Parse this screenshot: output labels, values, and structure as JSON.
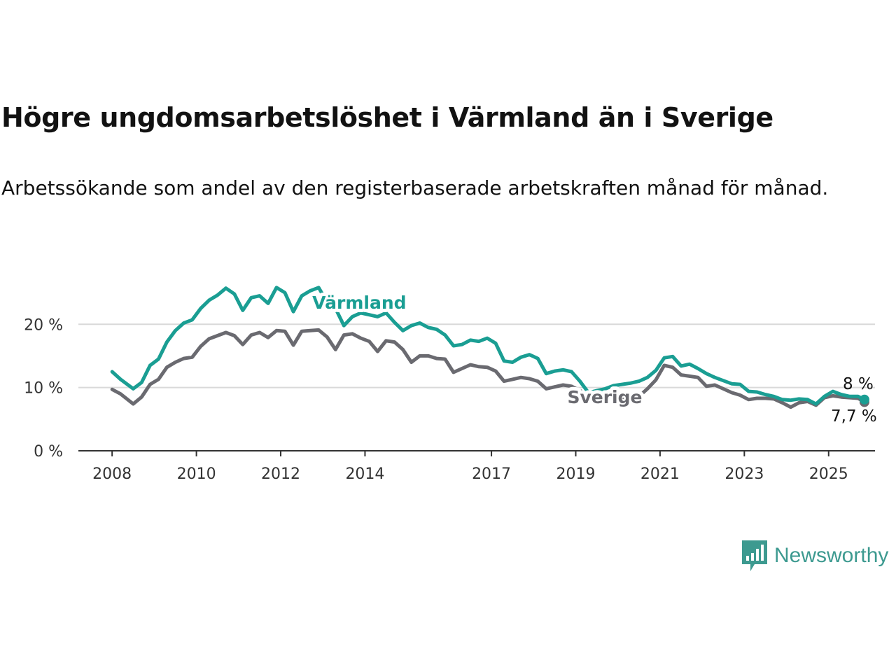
{
  "title": "Högre ungdomsarbetslöshet i Värmland än i Sverige",
  "subtitle": "Arbetssökande som andel av den registerbaserade arbetskraften månad för månad.",
  "brand": "Newsworthy",
  "colors": {
    "varmland": "#1a9e93",
    "sverige": "#6a6a70",
    "grid": "#d9d9d9",
    "axis": "#333333"
  },
  "chart_data": {
    "type": "line",
    "x_ticks": [
      "2008",
      "2010",
      "2012",
      "2014",
      "2017",
      "2019",
      "2021",
      "2023",
      "2025"
    ],
    "x_tick_values": [
      2008,
      2010,
      2012,
      2014,
      2017,
      2019,
      2021,
      2023,
      2025
    ],
    "y_ticks": [
      "0 %",
      "10 %",
      "20 %"
    ],
    "y_tick_values": [
      0,
      10,
      20
    ],
    "ylim": [
      0,
      27
    ],
    "xlim": [
      2007.2,
      2026.1
    ],
    "grid": true,
    "series": [
      {
        "name": "Värmland",
        "end_label": "8 %",
        "data": [
          [
            2008.0,
            12.5
          ],
          [
            2008.2,
            11.3
          ],
          [
            2008.5,
            9.8
          ],
          [
            2008.7,
            10.8
          ],
          [
            2008.9,
            13.5
          ],
          [
            2009.1,
            14.5
          ],
          [
            2009.3,
            17.2
          ],
          [
            2009.5,
            19.0
          ],
          [
            2009.7,
            20.2
          ],
          [
            2009.9,
            20.7
          ],
          [
            2010.1,
            22.5
          ],
          [
            2010.3,
            23.8
          ],
          [
            2010.5,
            24.6
          ],
          [
            2010.7,
            25.7
          ],
          [
            2010.9,
            24.8
          ],
          [
            2011.1,
            22.2
          ],
          [
            2011.3,
            24.2
          ],
          [
            2011.5,
            24.5
          ],
          [
            2011.7,
            23.3
          ],
          [
            2011.9,
            25.8
          ],
          [
            2012.1,
            25.0
          ],
          [
            2012.3,
            22.0
          ],
          [
            2012.5,
            24.5
          ],
          [
            2012.7,
            25.3
          ],
          [
            2012.9,
            25.8
          ],
          [
            2013.1,
            23.5
          ],
          [
            2013.3,
            22.5
          ],
          [
            2013.5,
            19.8
          ],
          [
            2013.7,
            21.2
          ],
          [
            2013.9,
            21.8
          ],
          [
            2014.1,
            21.5
          ],
          [
            2014.3,
            21.2
          ],
          [
            2014.5,
            21.8
          ],
          [
            2014.7,
            20.3
          ],
          [
            2014.9,
            19.0
          ],
          [
            2015.1,
            19.8
          ],
          [
            2015.3,
            20.2
          ],
          [
            2015.5,
            19.5
          ],
          [
            2015.7,
            19.2
          ],
          [
            2015.9,
            18.3
          ],
          [
            2016.1,
            16.6
          ],
          [
            2016.3,
            16.8
          ],
          [
            2016.5,
            17.5
          ],
          [
            2016.7,
            17.3
          ],
          [
            2016.9,
            17.8
          ],
          [
            2017.1,
            17.0
          ],
          [
            2017.3,
            14.2
          ],
          [
            2017.5,
            14.0
          ],
          [
            2017.7,
            14.8
          ],
          [
            2017.9,
            15.2
          ],
          [
            2018.1,
            14.6
          ],
          [
            2018.3,
            12.2
          ],
          [
            2018.5,
            12.6
          ],
          [
            2018.7,
            12.8
          ],
          [
            2018.9,
            12.5
          ],
          [
            2019.1,
            11.0
          ],
          [
            2019.3,
            9.2
          ],
          [
            2019.5,
            9.5
          ],
          [
            2019.7,
            9.8
          ],
          [
            2019.9,
            10.3
          ],
          [
            2020.1,
            10.5
          ],
          [
            2020.3,
            10.7
          ],
          [
            2020.5,
            11.0
          ],
          [
            2020.7,
            11.6
          ],
          [
            2020.9,
            12.7
          ],
          [
            2021.1,
            14.7
          ],
          [
            2021.3,
            14.9
          ],
          [
            2021.5,
            13.4
          ],
          [
            2021.7,
            13.7
          ],
          [
            2021.9,
            13.0
          ],
          [
            2022.1,
            12.2
          ],
          [
            2022.3,
            11.6
          ],
          [
            2022.5,
            11.1
          ],
          [
            2022.7,
            10.6
          ],
          [
            2022.9,
            10.5
          ],
          [
            2023.1,
            9.4
          ],
          [
            2023.3,
            9.3
          ],
          [
            2023.5,
            8.9
          ],
          [
            2023.7,
            8.6
          ],
          [
            2023.9,
            8.1
          ],
          [
            2024.1,
            8.0
          ],
          [
            2024.3,
            8.2
          ],
          [
            2024.5,
            8.1
          ],
          [
            2024.7,
            7.4
          ],
          [
            2024.9,
            8.6
          ],
          [
            2025.1,
            9.4
          ],
          [
            2025.3,
            8.9
          ],
          [
            2025.5,
            8.6
          ],
          [
            2025.7,
            8.6
          ],
          [
            2025.85,
            8.1
          ]
        ]
      },
      {
        "name": "Sverige",
        "end_label": "7,7 %",
        "data": [
          [
            2008.0,
            9.7
          ],
          [
            2008.2,
            9.0
          ],
          [
            2008.5,
            7.4
          ],
          [
            2008.7,
            8.5
          ],
          [
            2008.9,
            10.5
          ],
          [
            2009.1,
            11.3
          ],
          [
            2009.3,
            13.2
          ],
          [
            2009.5,
            14.0
          ],
          [
            2009.7,
            14.6
          ],
          [
            2009.9,
            14.8
          ],
          [
            2010.1,
            16.5
          ],
          [
            2010.3,
            17.7
          ],
          [
            2010.5,
            18.2
          ],
          [
            2010.7,
            18.7
          ],
          [
            2010.9,
            18.2
          ],
          [
            2011.1,
            16.8
          ],
          [
            2011.3,
            18.3
          ],
          [
            2011.5,
            18.7
          ],
          [
            2011.7,
            17.9
          ],
          [
            2011.9,
            19.0
          ],
          [
            2012.1,
            18.9
          ],
          [
            2012.3,
            16.7
          ],
          [
            2012.5,
            18.9
          ],
          [
            2012.7,
            19.0
          ],
          [
            2012.9,
            19.1
          ],
          [
            2013.1,
            18.0
          ],
          [
            2013.3,
            16.0
          ],
          [
            2013.5,
            18.3
          ],
          [
            2013.7,
            18.5
          ],
          [
            2013.9,
            17.8
          ],
          [
            2014.1,
            17.3
          ],
          [
            2014.3,
            15.7
          ],
          [
            2014.5,
            17.4
          ],
          [
            2014.7,
            17.2
          ],
          [
            2014.9,
            16.0
          ],
          [
            2015.1,
            14.0
          ],
          [
            2015.3,
            15.0
          ],
          [
            2015.5,
            15.0
          ],
          [
            2015.7,
            14.6
          ],
          [
            2015.9,
            14.5
          ],
          [
            2016.1,
            12.4
          ],
          [
            2016.3,
            13.0
          ],
          [
            2016.5,
            13.6
          ],
          [
            2016.7,
            13.3
          ],
          [
            2016.9,
            13.2
          ],
          [
            2017.1,
            12.6
          ],
          [
            2017.3,
            11.0
          ],
          [
            2017.5,
            11.3
          ],
          [
            2017.7,
            11.6
          ],
          [
            2017.9,
            11.4
          ],
          [
            2018.1,
            11.0
          ],
          [
            2018.3,
            9.8
          ],
          [
            2018.5,
            10.1
          ],
          [
            2018.7,
            10.4
          ],
          [
            2018.9,
            10.2
          ],
          [
            2019.1,
            9.5
          ],
          [
            2019.3,
            8.6
          ],
          [
            2019.5,
            8.6
          ],
          [
            2019.7,
            8.4
          ],
          [
            2019.9,
            8.3
          ],
          [
            2020.1,
            8.3
          ],
          [
            2020.3,
            8.2
          ],
          [
            2020.5,
            8.6
          ],
          [
            2020.7,
            9.8
          ],
          [
            2020.9,
            11.2
          ],
          [
            2021.1,
            13.5
          ],
          [
            2021.3,
            13.2
          ],
          [
            2021.5,
            12.0
          ],
          [
            2021.7,
            11.8
          ],
          [
            2021.9,
            11.6
          ],
          [
            2022.1,
            10.2
          ],
          [
            2022.3,
            10.4
          ],
          [
            2022.5,
            9.8
          ],
          [
            2022.7,
            9.2
          ],
          [
            2022.9,
            8.8
          ],
          [
            2023.1,
            8.1
          ],
          [
            2023.3,
            8.3
          ],
          [
            2023.5,
            8.3
          ],
          [
            2023.7,
            8.2
          ],
          [
            2023.9,
            7.6
          ],
          [
            2024.1,
            6.9
          ],
          [
            2024.3,
            7.6
          ],
          [
            2024.5,
            7.8
          ],
          [
            2024.7,
            7.2
          ],
          [
            2024.9,
            8.4
          ],
          [
            2025.1,
            8.7
          ],
          [
            2025.3,
            8.5
          ],
          [
            2025.5,
            8.4
          ],
          [
            2025.7,
            8.3
          ],
          [
            2025.85,
            7.7
          ]
        ]
      }
    ]
  }
}
